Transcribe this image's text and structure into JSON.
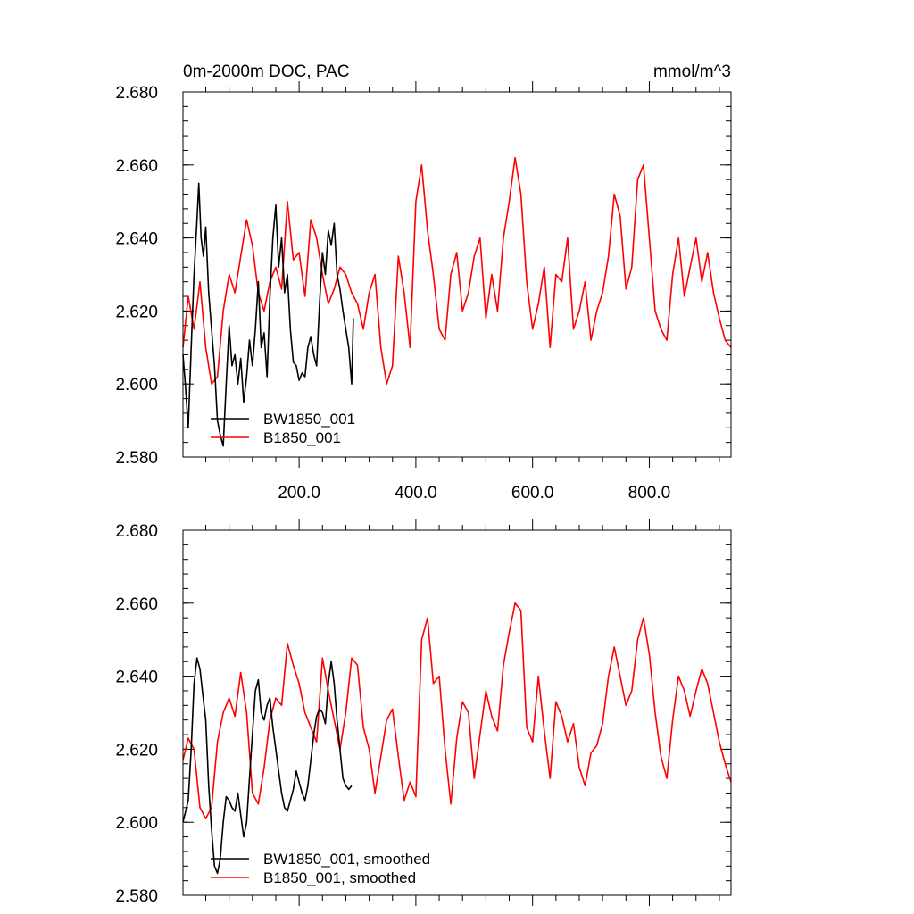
{
  "chart_data": [
    {
      "type": "line",
      "title_left": "0m-2000m DOC, PAC",
      "title_right": "mmol/m^3",
      "xlim": [
        1,
        940
      ],
      "ylim": [
        2.58,
        2.68
      ],
      "x_tick_values": [
        200,
        400,
        600,
        800
      ],
      "x_tick_labels": [
        "200.0",
        "400.0",
        "600.0",
        "800.0"
      ],
      "y_tick_values": [
        2.58,
        2.6,
        2.62,
        2.64,
        2.66,
        2.68
      ],
      "y_tick_labels": [
        "2.580",
        "2.600",
        "2.620",
        "2.640",
        "2.660",
        "2.680"
      ],
      "legend": {
        "placement": "bottom-left",
        "entries": [
          "BW1850_001",
          "B1850_001"
        ]
      },
      "series": [
        {
          "name": "BW1850_001",
          "color": "#000000",
          "x": [
            1,
            5,
            10,
            15,
            20,
            25,
            28,
            32,
            36,
            40,
            45,
            50,
            55,
            60,
            65,
            70,
            75,
            80,
            85,
            90,
            95,
            100,
            105,
            110,
            115,
            120,
            125,
            130,
            135,
            140,
            145,
            150,
            155,
            160,
            165,
            170,
            175,
            180,
            185,
            190,
            195,
            200,
            205,
            210,
            215,
            220,
            225,
            230,
            235,
            240,
            245,
            250,
            255,
            260,
            265,
            270,
            275,
            280,
            285,
            290,
            293
          ],
          "y": [
            2.608,
            2.6,
            2.588,
            2.61,
            2.63,
            2.645,
            2.655,
            2.64,
            2.635,
            2.643,
            2.625,
            2.615,
            2.605,
            2.59,
            2.586,
            2.583,
            2.6,
            2.616,
            2.605,
            2.608,
            2.6,
            2.607,
            2.595,
            2.602,
            2.612,
            2.605,
            2.615,
            2.628,
            2.61,
            2.614,
            2.602,
            2.624,
            2.64,
            2.649,
            2.632,
            2.64,
            2.625,
            2.63,
            2.615,
            2.606,
            2.605,
            2.601,
            2.603,
            2.602,
            2.61,
            2.613,
            2.608,
            2.605,
            2.622,
            2.636,
            2.63,
            2.642,
            2.638,
            2.644,
            2.63,
            2.626,
            2.62,
            2.615,
            2.61,
            2.6,
            2.618
          ]
        },
        {
          "name": "B1850_001",
          "color": "#ff0000",
          "x": [
            1,
            10,
            20,
            30,
            40,
            50,
            60,
            70,
            80,
            90,
            100,
            110,
            120,
            130,
            140,
            150,
            160,
            170,
            180,
            190,
            200,
            210,
            220,
            230,
            240,
            250,
            260,
            270,
            280,
            290,
            300,
            310,
            320,
            330,
            340,
            350,
            360,
            370,
            380,
            390,
            400,
            410,
            420,
            430,
            440,
            450,
            460,
            470,
            480,
            490,
            500,
            510,
            520,
            530,
            540,
            550,
            560,
            570,
            580,
            590,
            600,
            610,
            620,
            630,
            640,
            650,
            660,
            670,
            680,
            690,
            700,
            710,
            720,
            730,
            740,
            750,
            760,
            770,
            780,
            790,
            800,
            810,
            820,
            830,
            840,
            850,
            860,
            870,
            880,
            890,
            900,
            910,
            920,
            930,
            940
          ],
          "y": [
            2.61,
            2.624,
            2.615,
            2.628,
            2.61,
            2.6,
            2.602,
            2.62,
            2.63,
            2.625,
            2.635,
            2.645,
            2.638,
            2.625,
            2.62,
            2.628,
            2.632,
            2.626,
            2.65,
            2.634,
            2.636,
            2.624,
            2.645,
            2.64,
            2.63,
            2.622,
            2.626,
            2.632,
            2.63,
            2.625,
            2.622,
            2.615,
            2.625,
            2.63,
            2.61,
            2.6,
            2.605,
            2.635,
            2.625,
            2.61,
            2.65,
            2.66,
            2.642,
            2.63,
            2.615,
            2.612,
            2.63,
            2.636,
            2.62,
            2.625,
            2.635,
            2.64,
            2.618,
            2.63,
            2.62,
            2.64,
            2.65,
            2.662,
            2.652,
            2.628,
            2.615,
            2.622,
            2.632,
            2.61,
            2.63,
            2.628,
            2.64,
            2.615,
            2.62,
            2.628,
            2.612,
            2.62,
            2.625,
            2.635,
            2.652,
            2.646,
            2.626,
            2.632,
            2.656,
            2.66,
            2.64,
            2.62,
            2.615,
            2.612,
            2.63,
            2.64,
            2.624,
            2.632,
            2.64,
            2.628,
            2.636,
            2.625,
            2.618,
            2.612,
            2.61
          ]
        }
      ]
    },
    {
      "type": "line",
      "xlim": [
        1,
        940
      ],
      "ylim": [
        2.58,
        2.68
      ],
      "x_tick_values": [
        200,
        400,
        600,
        800
      ],
      "y_tick_values": [
        2.58,
        2.6,
        2.62,
        2.64,
        2.66,
        2.68
      ],
      "y_tick_labels": [
        "2.580",
        "2.600",
        "2.620",
        "2.640",
        "2.660",
        "2.680"
      ],
      "legend": {
        "placement": "bottom-left",
        "entries": [
          "BW1850_001, smoothed",
          "B1850_001, smoothed"
        ]
      },
      "series": [
        {
          "name": "BW1850_001, smoothed",
          "color": "#000000",
          "x": [
            1,
            10,
            15,
            20,
            25,
            30,
            35,
            40,
            45,
            50,
            55,
            60,
            65,
            70,
            75,
            80,
            85,
            90,
            95,
            100,
            105,
            110,
            115,
            120,
            125,
            130,
            135,
            140,
            145,
            150,
            155,
            160,
            165,
            170,
            175,
            180,
            185,
            190,
            195,
            200,
            205,
            210,
            215,
            220,
            225,
            230,
            235,
            240,
            245,
            250,
            255,
            260,
            265,
            270,
            275,
            280,
            285,
            290
          ],
          "y": [
            2.6,
            2.606,
            2.62,
            2.638,
            2.645,
            2.642,
            2.635,
            2.628,
            2.61,
            2.598,
            2.588,
            2.586,
            2.59,
            2.6,
            2.607,
            2.606,
            2.604,
            2.603,
            2.608,
            2.602,
            2.596,
            2.6,
            2.612,
            2.624,
            2.636,
            2.639,
            2.63,
            2.628,
            2.632,
            2.634,
            2.626,
            2.62,
            2.614,
            2.608,
            2.604,
            2.603,
            2.606,
            2.609,
            2.614,
            2.611,
            2.608,
            2.606,
            2.61,
            2.617,
            2.624,
            2.629,
            2.631,
            2.63,
            2.627,
            2.638,
            2.644,
            2.638,
            2.628,
            2.62,
            2.612,
            2.61,
            2.609,
            2.61
          ]
        },
        {
          "name": "B1850_001, smoothed",
          "color": "#ff0000",
          "x": [
            1,
            10,
            20,
            30,
            40,
            50,
            60,
            70,
            80,
            90,
            100,
            110,
            120,
            130,
            140,
            150,
            160,
            170,
            180,
            190,
            200,
            210,
            220,
            230,
            240,
            250,
            260,
            270,
            280,
            290,
            300,
            310,
            320,
            330,
            340,
            350,
            360,
            370,
            380,
            390,
            400,
            410,
            420,
            430,
            440,
            450,
            460,
            470,
            480,
            490,
            500,
            510,
            520,
            530,
            540,
            550,
            560,
            570,
            580,
            590,
            600,
            610,
            620,
            630,
            640,
            650,
            660,
            670,
            680,
            690,
            700,
            710,
            720,
            730,
            740,
            750,
            760,
            770,
            780,
            790,
            800,
            810,
            820,
            830,
            840,
            850,
            860,
            870,
            880,
            890,
            900,
            910,
            920,
            930,
            940
          ],
          "y": [
            2.617,
            2.623,
            2.62,
            2.604,
            2.601,
            2.604,
            2.622,
            2.63,
            2.634,
            2.629,
            2.641,
            2.63,
            2.608,
            2.605,
            2.615,
            2.628,
            2.634,
            2.632,
            2.649,
            2.643,
            2.638,
            2.63,
            2.626,
            2.622,
            2.645,
            2.636,
            2.628,
            2.62,
            2.63,
            2.645,
            2.643,
            2.626,
            2.62,
            2.608,
            2.618,
            2.628,
            2.631,
            2.618,
            2.606,
            2.611,
            2.607,
            2.65,
            2.656,
            2.638,
            2.64,
            2.62,
            2.605,
            2.623,
            2.633,
            2.63,
            2.612,
            2.624,
            2.636,
            2.629,
            2.625,
            2.643,
            2.652,
            2.66,
            2.658,
            2.626,
            2.622,
            2.64,
            2.625,
            2.612,
            2.633,
            2.629,
            2.622,
            2.627,
            2.615,
            2.61,
            2.619,
            2.621,
            2.627,
            2.64,
            2.648,
            2.64,
            2.632,
            2.636,
            2.65,
            2.656,
            2.646,
            2.63,
            2.618,
            2.612,
            2.628,
            2.64,
            2.636,
            2.629,
            2.636,
            2.642,
            2.638,
            2.63,
            2.622,
            2.616,
            2.611
          ]
        }
      ]
    }
  ]
}
